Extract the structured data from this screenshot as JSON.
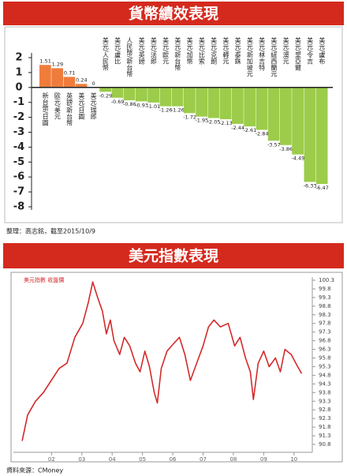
{
  "chart_data": [
    {
      "type": "bar",
      "title": "貨幣績效表現",
      "categories": [
        "新台幣/日圓",
        "歐元/美元",
        "英鎊/新台幣",
        "美元/日圓",
        "美元/瑞郎",
        "美元/人民幣",
        "美元/盧比",
        "人民幣/新台幣",
        "美元/英鎊",
        "美元/法郎",
        "美元/歐元",
        "美元/新台幣",
        "美元/加幣",
        "美元/比索",
        "美元/克朗",
        "美元/韓元",
        "美元/泰銖",
        "美元/新加坡元",
        "美元/林吉特",
        "美元/紐西蘭元",
        "美元/澳元",
        "美元/里亞爾",
        "美元/令吉",
        "美元/盧布"
      ],
      "values": [
        1.51,
        1.29,
        0.71,
        0.24,
        0,
        -0.29,
        -0.69,
        -0.86,
        -0.93,
        -1.01,
        -1.26,
        -1.26,
        -1.72,
        -1.95,
        -2.05,
        -2.13,
        -2.44,
        -2.61,
        -2.84,
        -3.57,
        -3.86,
        -4.49,
        -6.33,
        -6.47
      ],
      "color": "#f07c3c",
      "negative_color": "#9ccc4a",
      "ylim": [
        -8,
        2
      ],
      "yticks": [
        2,
        1,
        0,
        -1,
        -2,
        -3,
        -4,
        -5,
        -6,
        -7,
        -8
      ],
      "note": "整理：高志銘，截至2015/10/9"
    },
    {
      "type": "line",
      "title": "美元指數表現",
      "x": [
        1.03,
        1.21,
        1.47,
        1.73,
        1.99,
        2.25,
        2.51,
        2.77,
        3.03,
        3.21,
        3.36,
        3.52,
        3.68,
        3.81,
        3.94,
        4.06,
        4.25,
        4.4,
        4.58,
        4.77,
        4.92,
        5.08,
        5.23,
        5.39,
        5.49,
        5.62,
        5.81,
        6.01,
        6.22,
        6.4,
        6.58,
        6.79,
        7.0,
        7.18,
        7.36,
        7.57,
        7.83,
        8.04,
        8.22,
        8.4,
        8.56,
        8.66,
        8.82,
        9.0,
        9.18,
        9.39,
        9.55,
        9.7,
        9.91,
        10.06,
        10.25
      ],
      "series": [
        {
          "name": "美元指數 收盤價",
          "color": "#d42a2a",
          "values": [
            91.0,
            92.5,
            93.3,
            93.8,
            94.5,
            95.2,
            95.5,
            97.0,
            97.8,
            99.0,
            100.2,
            99.3,
            98.5,
            97.2,
            98.0,
            96.8,
            96.0,
            97.0,
            96.5,
            95.5,
            95.0,
            96.2,
            95.3,
            93.8,
            93.2,
            95.2,
            96.2,
            96.6,
            97.0,
            96.0,
            94.5,
            95.5,
            96.5,
            97.6,
            98.0,
            97.6,
            97.8,
            96.5,
            97.0,
            95.8,
            95.0,
            93.4,
            95.5,
            96.2,
            95.3,
            95.8,
            95.0,
            96.3,
            96.0,
            95.5,
            94.9
          ]
        }
      ],
      "xlim": [
        0.95,
        10.5
      ],
      "xticks": [
        {
          "value": 2,
          "label": "02"
        },
        {
          "value": 3,
          "label": "03"
        },
        {
          "value": 4,
          "label": "04"
        },
        {
          "value": 5,
          "label": "05"
        },
        {
          "value": 6,
          "label": "06"
        },
        {
          "value": 7,
          "label": "07"
        },
        {
          "value": 8,
          "label": "08"
        },
        {
          "value": 9,
          "label": "09"
        },
        {
          "value": 10,
          "label": "10"
        }
      ],
      "ylim": [
        90.8,
        100.3
      ],
      "yticks": [
        90.8,
        91.3,
        91.8,
        92.3,
        92.8,
        93.3,
        93.8,
        94.3,
        94.8,
        95.3,
        95.8,
        96.3,
        96.8,
        97.3,
        97.8,
        98.3,
        98.8,
        99.3,
        99.8,
        100.3
      ],
      "source": "資料來源：CMoney"
    }
  ]
}
